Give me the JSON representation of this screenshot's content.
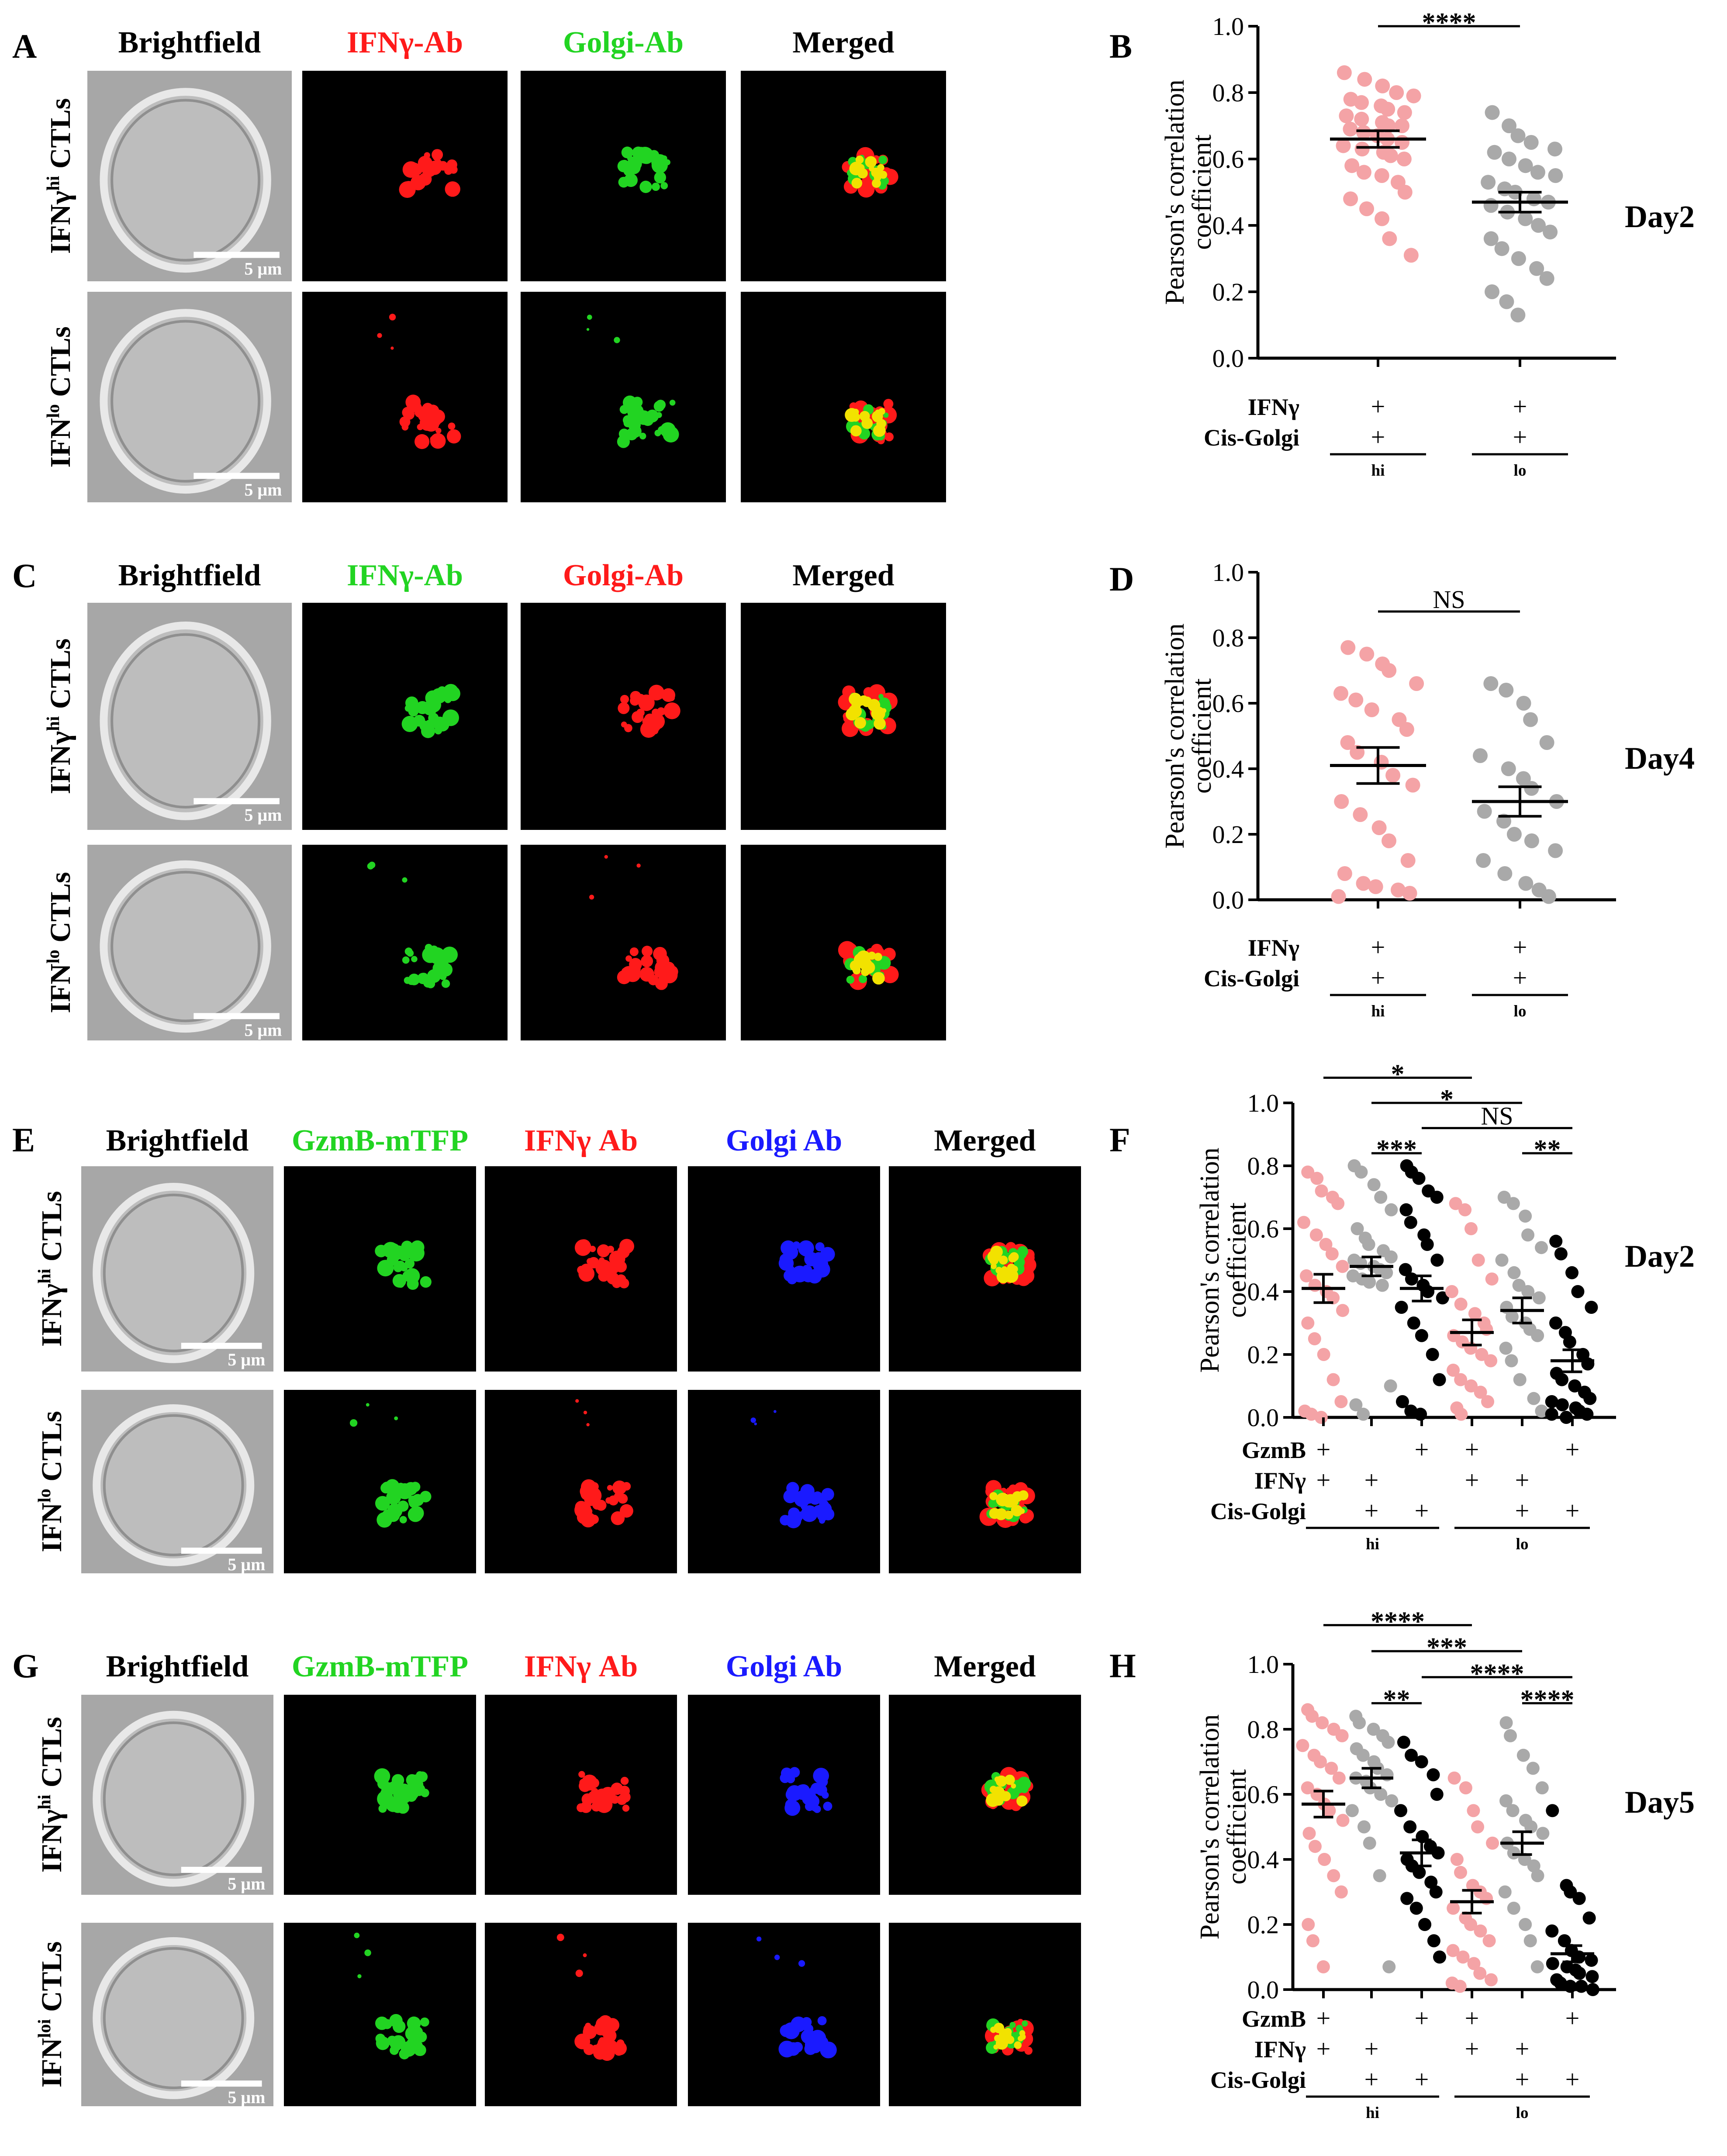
{
  "colors": {
    "pink": "#f4a3a6",
    "gray": "#a9a9a9",
    "black": "#000000",
    "red": "#ff1a1a",
    "green": "#22d422",
    "blue": "#1a1aff",
    "yellow": "#f2e200"
  },
  "panels": {
    "A": {
      "letter": "A",
      "headers": [
        "Brightfield",
        "IFNγ-Ab",
        "Golgi-Ab",
        "Merged"
      ],
      "header_colors": [
        "black",
        "red",
        "green",
        "black"
      ],
      "row_labels": [
        {
          "main": "IFNγ",
          "sup": "hi",
          "rest": " CTLs"
        },
        {
          "main": "IFN",
          "sup": "lo",
          "rest": " CTLs"
        }
      ],
      "scale_bar": "5 μm",
      "channels": [
        "red",
        "green",
        "merged"
      ]
    },
    "C": {
      "letter": "C",
      "headers": [
        "Brightfield",
        "IFNγ-Ab",
        "Golgi-Ab",
        "Merged"
      ],
      "header_colors": [
        "black",
        "green",
        "red",
        "black"
      ],
      "row_labels": [
        {
          "main": "IFNγ",
          "sup": "hi",
          "rest": " CTLs"
        },
        {
          "main": "IFN",
          "sup": "lo",
          "rest": " CTLs"
        }
      ],
      "scale_bar": "5 μm",
      "channels": [
        "green",
        "red",
        "merged"
      ]
    },
    "E": {
      "letter": "E",
      "headers": [
        "Brightfield",
        "GzmB-mTFP",
        "IFNγ Ab",
        "Golgi Ab",
        "Merged"
      ],
      "header_colors": [
        "black",
        "green",
        "red",
        "blue",
        "black"
      ],
      "row_labels": [
        {
          "main": "IFNγ",
          "sup": "hi",
          "rest": " CTLs"
        },
        {
          "main": "IFN",
          "sup": "lo",
          "rest": " CTLs"
        }
      ],
      "scale_bar": "5 μm",
      "channels": [
        "green",
        "red",
        "blue",
        "merged"
      ]
    },
    "G": {
      "letter": "G",
      "headers": [
        "Brightfield",
        "GzmB-mTFP",
        "IFNγ Ab",
        "Golgi Ab",
        "Merged"
      ],
      "header_colors": [
        "black",
        "green",
        "red",
        "blue",
        "black"
      ],
      "row_labels": [
        {
          "main": "IFNγ",
          "sup": "hi",
          "rest": " CTLs"
        },
        {
          "main": "IFN",
          "sup": "loi",
          "rest": " CTLs"
        }
      ],
      "scale_bar": "5 μm",
      "channels": [
        "green",
        "red",
        "blue",
        "merged"
      ]
    }
  },
  "chart_data": [
    {
      "panel": "B",
      "type": "scatter",
      "ylabel": [
        "Pearson's correlation",
        "coefficient"
      ],
      "ylim": [
        0,
        1.0
      ],
      "yticks": [
        "0.0",
        "0.2",
        "0.4",
        "0.6",
        "0.8",
        "1.0"
      ],
      "side_label": "Day2",
      "row_labels": [
        "IFNγ",
        "Cis-Golgi"
      ],
      "groups": [
        {
          "name": "IFNγ",
          "sup": "hi"
        },
        {
          "name": "IFNγ",
          "sup": "lo"
        }
      ],
      "series": [
        {
          "color": "pink",
          "group": 0,
          "rows": [
            "+",
            "+"
          ],
          "mean": 0.66,
          "sem": 0.025,
          "values": [
            0.86,
            0.84,
            0.82,
            0.8,
            0.79,
            0.78,
            0.77,
            0.76,
            0.75,
            0.74,
            0.73,
            0.72,
            0.71,
            0.7,
            0.7,
            0.69,
            0.68,
            0.67,
            0.66,
            0.65,
            0.64,
            0.63,
            0.62,
            0.61,
            0.6,
            0.58,
            0.56,
            0.55,
            0.53,
            0.5,
            0.48,
            0.45,
            0.42,
            0.36,
            0.31
          ]
        },
        {
          "color": "gray",
          "group": 1,
          "rows": [
            "+",
            "+"
          ],
          "mean": 0.47,
          "sem": 0.03,
          "values": [
            0.74,
            0.7,
            0.67,
            0.65,
            0.63,
            0.62,
            0.6,
            0.58,
            0.56,
            0.55,
            0.53,
            0.51,
            0.5,
            0.48,
            0.47,
            0.46,
            0.44,
            0.42,
            0.4,
            0.38,
            0.36,
            0.33,
            0.3,
            0.27,
            0.24,
            0.2,
            0.17,
            0.13
          ]
        }
      ],
      "significance": [
        {
          "from": 0,
          "to": 1,
          "label": "****",
          "level": 1.0
        }
      ]
    },
    {
      "panel": "D",
      "type": "scatter",
      "ylabel": [
        "Pearson's correlation",
        "coefficient"
      ],
      "ylim": [
        0,
        1.0
      ],
      "yticks": [
        "0.0",
        "0.2",
        "0.4",
        "0.6",
        "0.8",
        "1.0"
      ],
      "side_label": "Day4",
      "row_labels": [
        "IFNγ",
        "Cis-Golgi"
      ],
      "groups": [
        {
          "name": "IFNγ",
          "sup": "hi"
        },
        {
          "name": "IFNγ",
          "sup": "lo"
        }
      ],
      "series": [
        {
          "color": "pink",
          "group": 0,
          "rows": [
            "+",
            "+"
          ],
          "mean": 0.41,
          "sem": 0.055,
          "values": [
            0.77,
            0.75,
            0.72,
            0.7,
            0.66,
            0.63,
            0.61,
            0.58,
            0.55,
            0.52,
            0.48,
            0.45,
            0.42,
            0.38,
            0.35,
            0.3,
            0.26,
            0.22,
            0.18,
            0.12,
            0.08,
            0.05,
            0.04,
            0.03,
            0.02,
            0.01
          ]
        },
        {
          "color": "gray",
          "group": 1,
          "rows": [
            "+",
            "+"
          ],
          "mean": 0.3,
          "sem": 0.045,
          "values": [
            0.66,
            0.64,
            0.6,
            0.55,
            0.48,
            0.44,
            0.4,
            0.37,
            0.34,
            0.3,
            0.27,
            0.24,
            0.2,
            0.18,
            0.15,
            0.12,
            0.08,
            0.05,
            0.03,
            0.01
          ]
        }
      ],
      "significance": [
        {
          "from": 0,
          "to": 1,
          "label": "NS",
          "level": 0.88
        }
      ]
    },
    {
      "panel": "F",
      "type": "scatter",
      "ylabel": [
        "Pearson's correlation",
        "coefficient"
      ],
      "ylim": [
        0,
        1.0
      ],
      "yticks": [
        "0.0",
        "0.2",
        "0.4",
        "0.6",
        "0.8",
        "1.0"
      ],
      "side_label": "Day2",
      "row_labels": [
        "GzmB",
        "IFNγ",
        "Cis-Golgi"
      ],
      "groups": [
        {
          "name": "IFNγ",
          "sup": "hi"
        },
        {
          "name": "IFNγ",
          "sup": "lo"
        }
      ],
      "series": [
        {
          "color": "pink",
          "group": 0,
          "rows": [
            "+",
            "+",
            ""
          ],
          "mean": 0.41,
          "sem": 0.045,
          "values": [
            0.78,
            0.76,
            0.72,
            0.7,
            0.68,
            0.62,
            0.58,
            0.55,
            0.52,
            0.48,
            0.45,
            0.42,
            0.4,
            0.38,
            0.34,
            0.3,
            0.25,
            0.2,
            0.12,
            0.05,
            0.02,
            0.01,
            0.0
          ]
        },
        {
          "color": "gray",
          "group": 0,
          "rows": [
            "",
            "+",
            "+"
          ],
          "mean": 0.48,
          "sem": 0.03,
          "values": [
            0.8,
            0.78,
            0.74,
            0.7,
            0.66,
            0.6,
            0.57,
            0.55,
            0.53,
            0.51,
            0.5,
            0.49,
            0.48,
            0.47,
            0.46,
            0.45,
            0.44,
            0.43,
            0.42,
            0.1,
            0.04,
            0.01
          ]
        },
        {
          "color": "black",
          "group": 0,
          "rows": [
            "+",
            "",
            "+"
          ],
          "mean": 0.41,
          "sem": 0.04,
          "values": [
            0.8,
            0.78,
            0.76,
            0.72,
            0.7,
            0.66,
            0.62,
            0.58,
            0.55,
            0.5,
            0.47,
            0.44,
            0.42,
            0.4,
            0.38,
            0.35,
            0.3,
            0.26,
            0.2,
            0.12,
            0.05,
            0.02,
            0.01
          ]
        },
        {
          "color": "pink",
          "group": 1,
          "rows": [
            "+",
            "+",
            ""
          ],
          "mean": 0.27,
          "sem": 0.04,
          "values": [
            0.68,
            0.66,
            0.6,
            0.5,
            0.44,
            0.4,
            0.36,
            0.33,
            0.3,
            0.28,
            0.26,
            0.24,
            0.22,
            0.2,
            0.18,
            0.15,
            0.12,
            0.1,
            0.08,
            0.05,
            0.03,
            0.01
          ]
        },
        {
          "color": "gray",
          "group": 1,
          "rows": [
            "",
            "+",
            "+"
          ],
          "mean": 0.34,
          "sem": 0.04,
          "values": [
            0.7,
            0.68,
            0.64,
            0.58,
            0.54,
            0.5,
            0.46,
            0.42,
            0.4,
            0.38,
            0.35,
            0.32,
            0.3,
            0.28,
            0.26,
            0.22,
            0.18,
            0.12,
            0.06,
            0.02
          ]
        },
        {
          "color": "black",
          "group": 1,
          "rows": [
            "+",
            "",
            "+"
          ],
          "mean": 0.18,
          "sem": 0.035,
          "values": [
            0.56,
            0.52,
            0.46,
            0.4,
            0.35,
            0.3,
            0.27,
            0.24,
            0.2,
            0.17,
            0.14,
            0.12,
            0.1,
            0.08,
            0.06,
            0.05,
            0.04,
            0.03,
            0.02,
            0.01,
            0.01,
            0.0
          ]
        }
      ],
      "significance": [
        {
          "from": 0,
          "to": 3,
          "label": "*",
          "level": 1.08
        },
        {
          "from": 1,
          "to": 4,
          "label": "*",
          "level": 1.0
        },
        {
          "from": 2,
          "to": 5,
          "label": "NS",
          "level": 0.92
        },
        {
          "from": 1,
          "to": 2,
          "label": "***",
          "level": 0.84
        },
        {
          "from": 4,
          "to": 5,
          "label": "**",
          "level": 0.84
        }
      ]
    },
    {
      "panel": "H",
      "type": "scatter",
      "ylabel": [
        "Pearson's correlation",
        "coefficient"
      ],
      "ylim": [
        0,
        1.0
      ],
      "yticks": [
        "0.0",
        "0.2",
        "0.4",
        "0.6",
        "0.8",
        "1.0"
      ],
      "side_label": "Day5",
      "row_labels": [
        "GzmB",
        "IFNγ",
        "Cis-Golgi"
      ],
      "groups": [
        {
          "name": "IFNγ",
          "sup": "hi"
        },
        {
          "name": "IFNγ",
          "sup": "lo"
        }
      ],
      "series": [
        {
          "color": "pink",
          "group": 0,
          "rows": [
            "+",
            "+",
            ""
          ],
          "mean": 0.57,
          "sem": 0.04,
          "values": [
            0.86,
            0.84,
            0.82,
            0.8,
            0.78,
            0.75,
            0.72,
            0.7,
            0.68,
            0.65,
            0.62,
            0.6,
            0.57,
            0.55,
            0.52,
            0.48,
            0.44,
            0.4,
            0.35,
            0.3,
            0.2,
            0.15,
            0.07
          ]
        },
        {
          "color": "gray",
          "group": 0,
          "rows": [
            "",
            "+",
            "+"
          ],
          "mean": 0.65,
          "sem": 0.03,
          "values": [
            0.84,
            0.82,
            0.8,
            0.78,
            0.76,
            0.74,
            0.72,
            0.7,
            0.68,
            0.66,
            0.65,
            0.64,
            0.62,
            0.6,
            0.58,
            0.55,
            0.5,
            0.45,
            0.35,
            0.07
          ]
        },
        {
          "color": "black",
          "group": 0,
          "rows": [
            "+",
            "",
            "+"
          ],
          "mean": 0.42,
          "sem": 0.04,
          "values": [
            0.76,
            0.72,
            0.7,
            0.66,
            0.6,
            0.55,
            0.5,
            0.47,
            0.44,
            0.42,
            0.4,
            0.38,
            0.36,
            0.33,
            0.3,
            0.28,
            0.25,
            0.2,
            0.15,
            0.1
          ]
        },
        {
          "color": "pink",
          "group": 1,
          "rows": [
            "+",
            "+",
            ""
          ],
          "mean": 0.27,
          "sem": 0.035,
          "values": [
            0.65,
            0.62,
            0.55,
            0.5,
            0.45,
            0.4,
            0.36,
            0.32,
            0.3,
            0.28,
            0.25,
            0.22,
            0.2,
            0.18,
            0.15,
            0.12,
            0.1,
            0.08,
            0.05,
            0.03,
            0.02,
            0.01
          ]
        },
        {
          "color": "gray",
          "group": 1,
          "rows": [
            "",
            "+",
            "+"
          ],
          "mean": 0.45,
          "sem": 0.035,
          "values": [
            0.82,
            0.78,
            0.72,
            0.68,
            0.62,
            0.58,
            0.55,
            0.52,
            0.5,
            0.48,
            0.45,
            0.42,
            0.4,
            0.38,
            0.35,
            0.3,
            0.25,
            0.2,
            0.15,
            0.07
          ]
        },
        {
          "color": "black",
          "group": 1,
          "rows": [
            "+",
            "",
            "+"
          ],
          "mean": 0.11,
          "sem": 0.025,
          "values": [
            0.55,
            0.32,
            0.3,
            0.28,
            0.22,
            0.18,
            0.15,
            0.12,
            0.1,
            0.09,
            0.08,
            0.07,
            0.06,
            0.05,
            0.04,
            0.03,
            0.02,
            0.01,
            0.01,
            0.0
          ]
        }
      ],
      "significance": [
        {
          "from": 0,
          "to": 3,
          "label": "****",
          "level": 1.12
        },
        {
          "from": 1,
          "to": 4,
          "label": "***",
          "level": 1.04
        },
        {
          "from": 2,
          "to": 5,
          "label": "****",
          "level": 0.96
        },
        {
          "from": 1,
          "to": 2,
          "label": "**",
          "level": 0.88
        },
        {
          "from": 4,
          "to": 5,
          "label": "****",
          "level": 0.88
        }
      ]
    }
  ]
}
